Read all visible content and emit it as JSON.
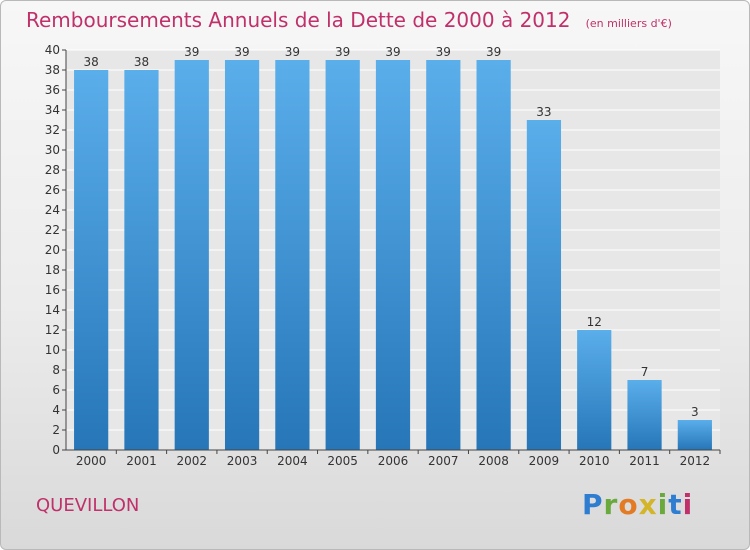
{
  "header": {
    "title": "Remboursements Annuels de la Dette de 2000 à 2012",
    "unit": "(en milliers d'€)"
  },
  "footer": {
    "commune": "QUEVILLON",
    "brand_letters": [
      "P",
      "r",
      "o",
      "x",
      "i",
      "t",
      "i"
    ]
  },
  "colors": {
    "title": "#c0306a",
    "bar_top": "#5aaeea",
    "bar_bottom": "#2676b8",
    "grid": "#ffffff",
    "plot_background": "#e7e7e7"
  },
  "chart_data": {
    "type": "bar",
    "title": "Remboursements Annuels de la Dette de 2000 à 2012",
    "subtitle": "(en milliers d'€)",
    "xlabel": "",
    "ylabel": "",
    "categories": [
      "2000",
      "2001",
      "2002",
      "2003",
      "2004",
      "2005",
      "2006",
      "2007",
      "2008",
      "2009",
      "2010",
      "2011",
      "2012"
    ],
    "values": [
      38,
      38,
      39,
      39,
      39,
      39,
      39,
      39,
      39,
      33,
      12,
      7,
      3
    ],
    "ylim": [
      0,
      40
    ],
    "yticks": [
      0,
      2,
      4,
      6,
      8,
      10,
      12,
      14,
      16,
      18,
      20,
      22,
      24,
      26,
      28,
      30,
      32,
      34,
      36,
      38,
      40
    ],
    "grid": true,
    "legend": "none"
  }
}
